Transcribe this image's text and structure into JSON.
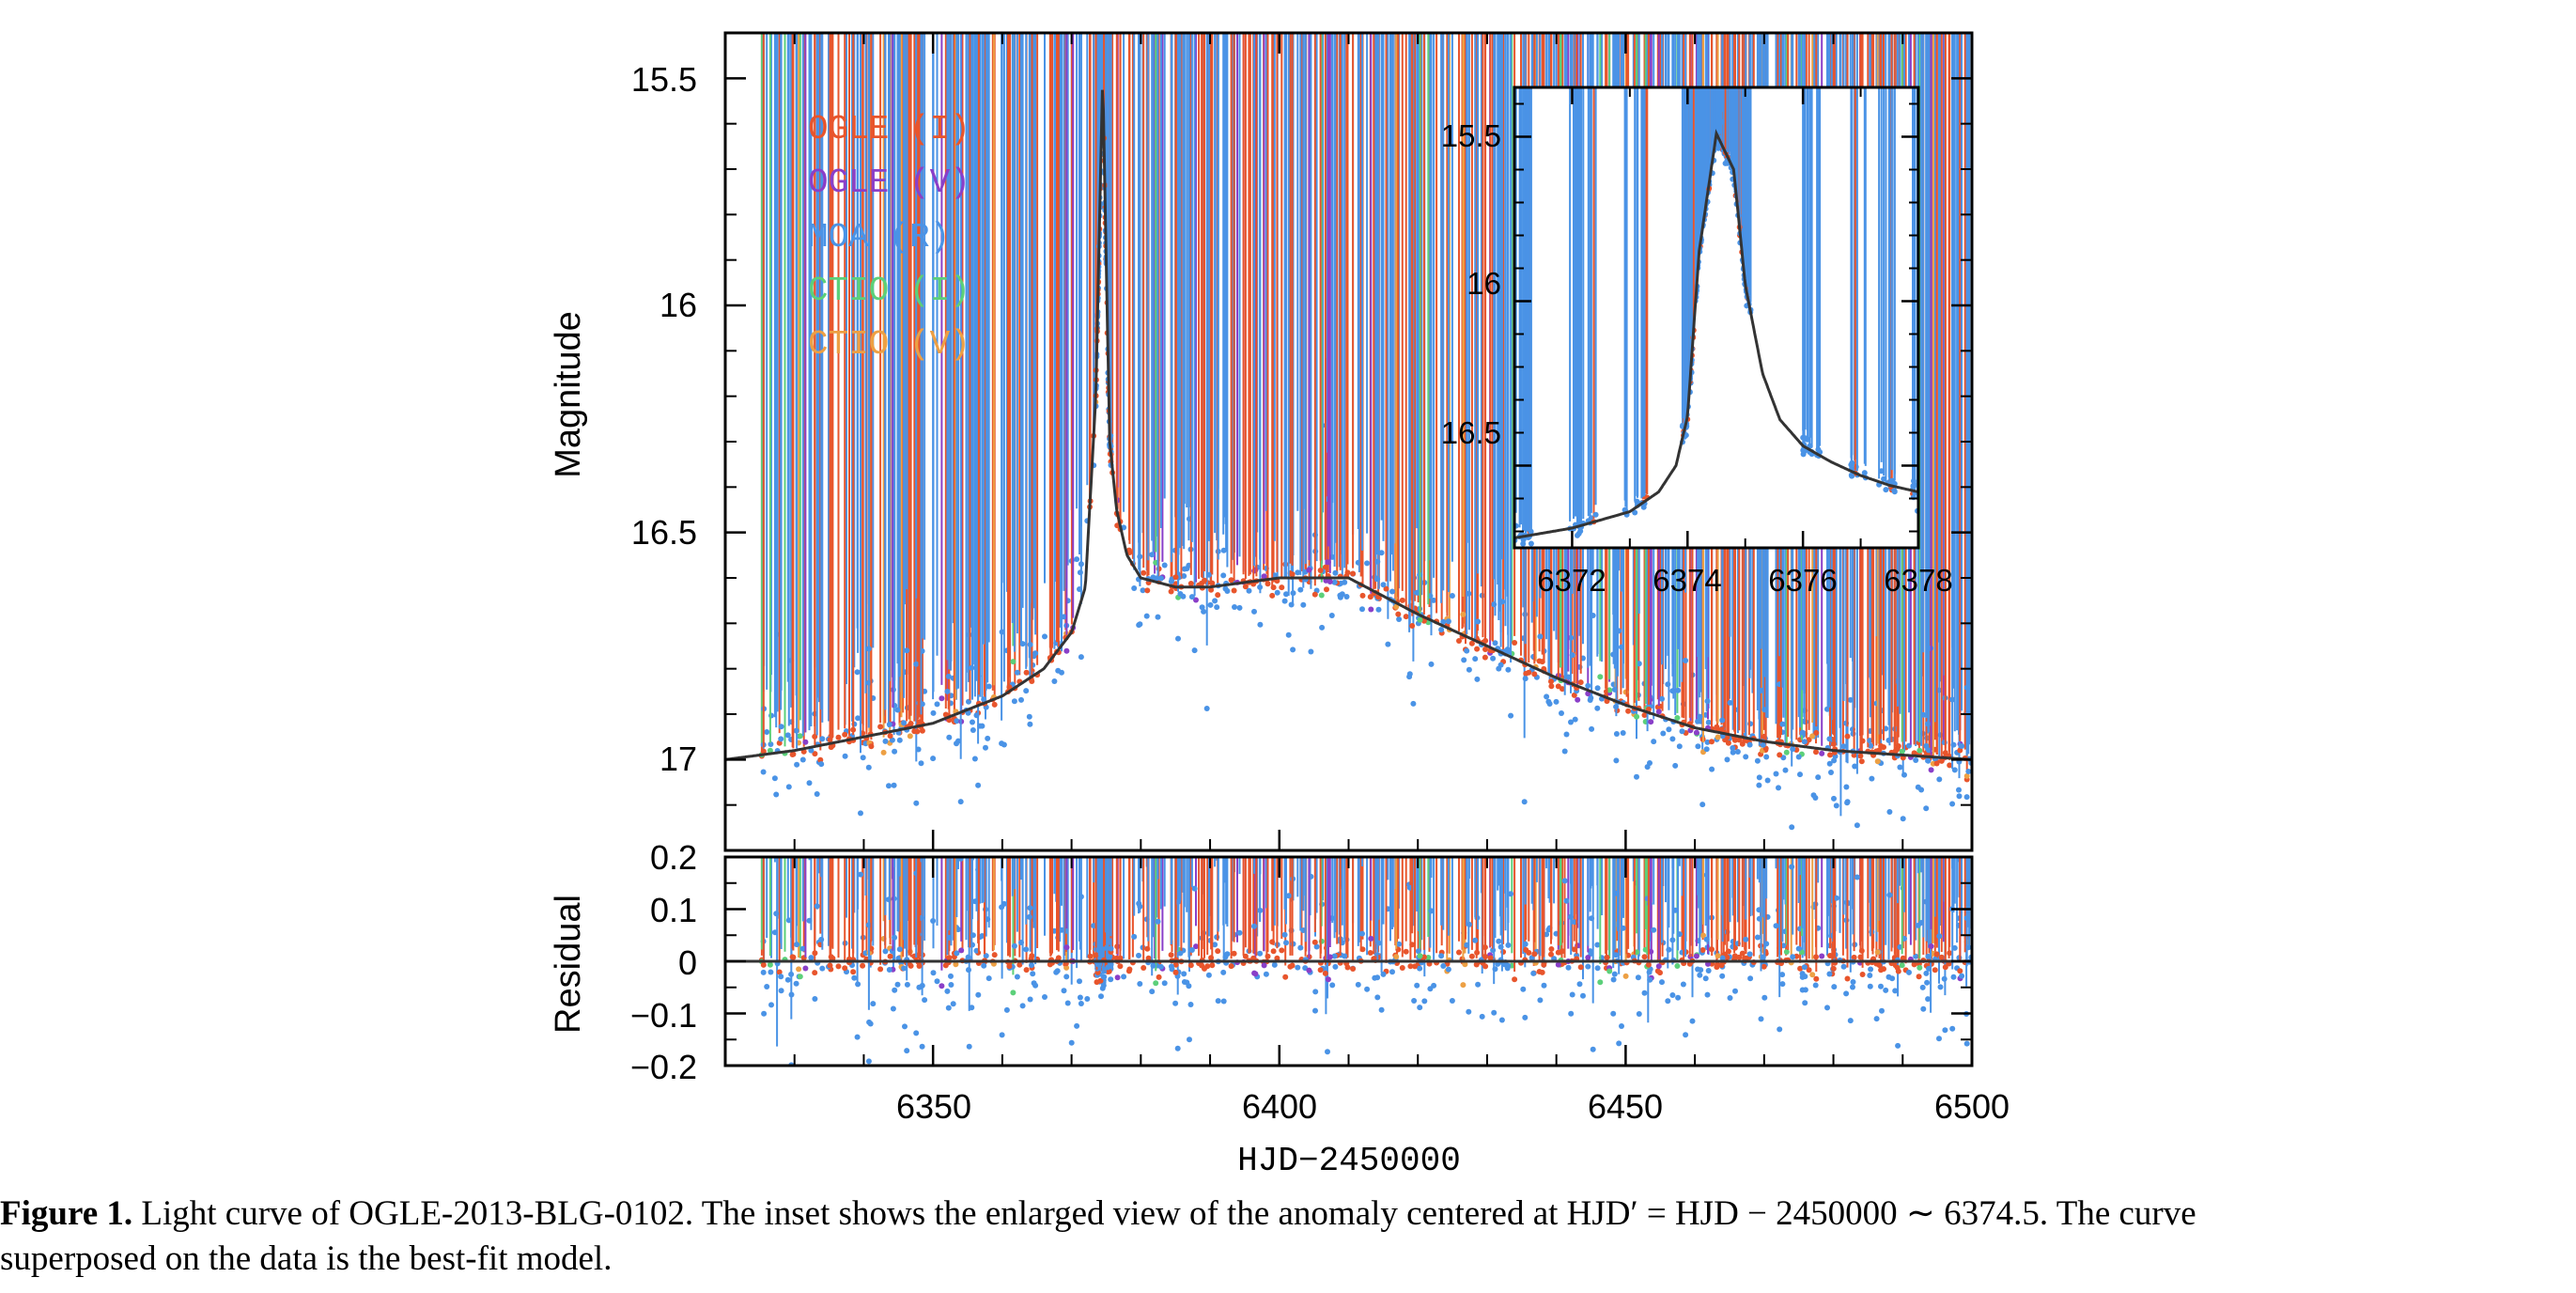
{
  "chart_data": [
    {
      "type": "scatter",
      "panel": "main",
      "xlabel": "HJD−2450000",
      "ylabel": "Magnitude",
      "xlim": [
        6320,
        6500
      ],
      "ylim": [
        17.2,
        15.4
      ],
      "y_inverted": true,
      "yticks": [
        "15.5",
        "16",
        "16.5",
        "17"
      ],
      "xticks": [
        "6350",
        "6400",
        "6450",
        "6500"
      ],
      "legend_position": "top-left",
      "series": [
        {
          "name": "OGLE (I)",
          "color": "#e8552c"
        },
        {
          "name": "OGLE (V)",
          "color": "#8a3fc8"
        },
        {
          "name": "MOA (R)",
          "color": "#4a93e6"
        },
        {
          "name": "CTIO (I)",
          "color": "#5cd07a"
        },
        {
          "name": "CTIO (V)",
          "color": "#eda044"
        }
      ],
      "model": {
        "name": "best-fit model",
        "x": [
          6320,
          6330,
          6340,
          6350,
          6360,
          6366,
          6370,
          6372,
          6373.5,
          6374.5,
          6375.5,
          6376.5,
          6378,
          6380,
          6385,
          6390,
          6400,
          6410,
          6420,
          6430,
          6440,
          6450,
          6460,
          6470,
          6480,
          6490,
          6500
        ],
        "y": [
          17.0,
          16.98,
          16.95,
          16.92,
          16.86,
          16.8,
          16.72,
          16.62,
          16.2,
          15.49,
          16.3,
          16.45,
          16.55,
          16.6,
          16.62,
          16.62,
          16.6,
          16.6,
          16.68,
          16.75,
          16.82,
          16.88,
          16.93,
          16.96,
          16.98,
          16.99,
          17.0
        ]
      }
    },
    {
      "type": "scatter",
      "panel": "residual",
      "xlabel": "HJD−2450000",
      "ylabel": "Residual",
      "xlim": [
        6320,
        6500
      ],
      "ylim": [
        -0.2,
        0.2
      ],
      "yticks": [
        "0.2",
        "0.1",
        "0",
        "−0.1",
        "−0.2"
      ],
      "xticks": [
        "6350",
        "6400",
        "6450",
        "6500"
      ],
      "model": {
        "x": [
          6320,
          6500
        ],
        "y": [
          0,
          0
        ]
      }
    },
    {
      "type": "scatter",
      "panel": "inset",
      "xlim": [
        6371,
        6378
      ],
      "ylim": [
        16.75,
        15.35
      ],
      "y_inverted": true,
      "yticks": [
        "15.5",
        "16",
        "16.5"
      ],
      "xticks": [
        "6372",
        "6374",
        "6376",
        "6378"
      ],
      "model": {
        "x": [
          6371,
          6372,
          6373,
          6373.5,
          6373.8,
          6374,
          6374.2,
          6374.5,
          6374.8,
          6375,
          6375.3,
          6375.6,
          6376,
          6376.5,
          6377,
          6377.5,
          6378
        ],
        "y": [
          16.72,
          16.69,
          16.64,
          16.58,
          16.5,
          16.35,
          15.85,
          15.49,
          15.6,
          15.95,
          16.22,
          16.36,
          16.44,
          16.49,
          16.53,
          16.56,
          16.58
        ]
      }
    }
  ],
  "caption": {
    "label": "Figure 1.",
    "text_line1": "Light curve of OGLE-2013-BLG-0102. The inset shows the enlarged view of the anomaly centered at HJD′ = HJD − 2450000 ∼ 6374.5. The curve",
    "text_line2": "superposed on the data is the best-fit model."
  }
}
